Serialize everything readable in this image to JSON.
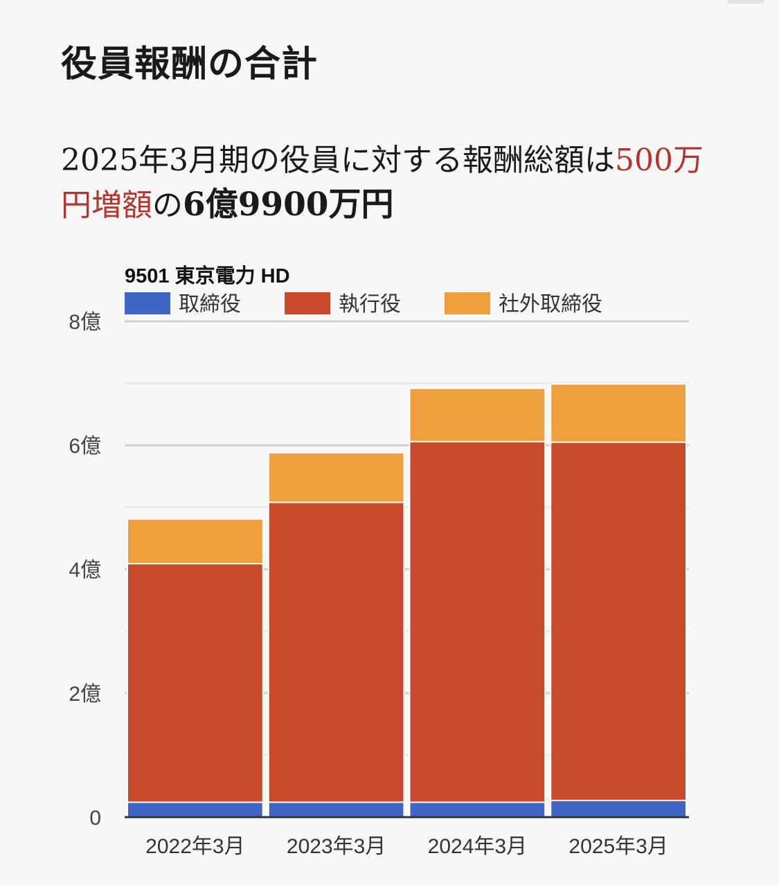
{
  "heading": "役員報酬の合計",
  "lead": {
    "part1": "2025年3月期の役員に対する報酬総額は",
    "highlight": "500万円増額",
    "part2": "の",
    "bold": "6億9900万円"
  },
  "chart_data": {
    "type": "bar",
    "stacked": true,
    "title": "9501 東京電力 HD",
    "categories": [
      "2022年3月",
      "2023年3月",
      "2024年3月",
      "2025年3月"
    ],
    "y_tick_labels": [
      "0",
      "2億",
      "4億",
      "6億",
      "8億"
    ],
    "ylim": [
      0,
      8
    ],
    "unit": "億",
    "legend_position": "top-left",
    "grid": true,
    "series": [
      {
        "name": "取締役",
        "color": "#3f66c4",
        "values": [
          0.24,
          0.24,
          0.24,
          0.27
        ]
      },
      {
        "name": "執行役",
        "color": "#c84a2a",
        "values": [
          3.85,
          4.84,
          5.82,
          5.78
        ]
      },
      {
        "name": "社外取締役",
        "color": "#f09f3d",
        "values": [
          0.72,
          0.8,
          0.86,
          0.94
        ]
      }
    ]
  }
}
